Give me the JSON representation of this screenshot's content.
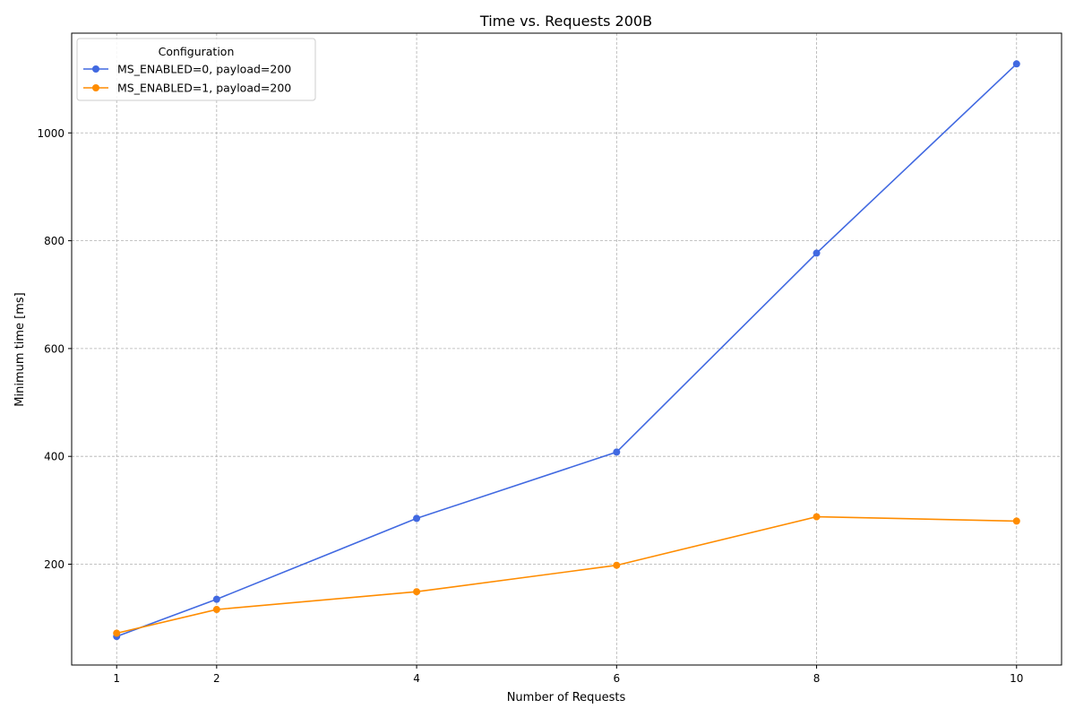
{
  "chart_data": {
    "type": "line",
    "title": "Time vs. Requests 200B",
    "xlabel": "Number of Requests",
    "ylabel": "Minimum time [ms]",
    "x": [
      1,
      2,
      4,
      6,
      8,
      10
    ],
    "xticks": [
      1,
      2,
      4,
      6,
      8,
      10
    ],
    "yticks": [
      200,
      400,
      600,
      800,
      1000
    ],
    "xlim": [
      0.55,
      10.45
    ],
    "ylim": [
      13,
      1185
    ],
    "grid": true,
    "legend": {
      "title": "Configuration",
      "placement": "top-left"
    },
    "series": [
      {
        "name": "MS_ENABLED=0, payload=200",
        "color": "#4169e1",
        "values": [
          66,
          135,
          285,
          408,
          777,
          1128
        ]
      },
      {
        "name": "MS_ENABLED=1, payload=200",
        "color": "#ff8c00",
        "values": [
          72,
          116,
          149,
          198,
          288,
          280
        ]
      }
    ]
  }
}
